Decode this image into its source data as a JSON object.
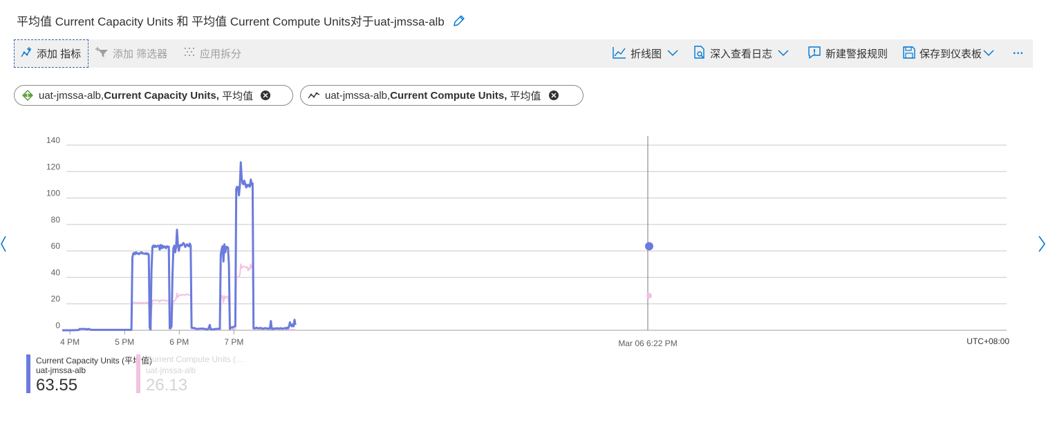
{
  "title": "平均值 Current Capacity Units 和 平均值 Current Compute Units对于uat-jmssa-alb",
  "toolbar": {
    "add_metric": "添加 指标",
    "add_filter": "添加 筛选器",
    "apply_split": "应用拆分",
    "chart_type": "折线图",
    "drill_logs": "深入查看日志",
    "new_alert": "新建警报规则",
    "save_dashboard": "保存到仪表板",
    "more": "···"
  },
  "pills": [
    {
      "resource": "uat-jmssa-alb,",
      "metric": "Current Capacity Units,",
      "agg": "平均值"
    },
    {
      "resource": "uat-jmssa-alb,",
      "metric": "Current Compute Units,",
      "agg": "平均值"
    }
  ],
  "colors": {
    "series1": "#6b7bdb",
    "series2": "#f2c2e2",
    "grid": "#c8c8c8"
  },
  "chart_data": {
    "type": "line",
    "x_start": "3:50 PM",
    "x_end": "7:56 PM",
    "x_tick_labels": [
      "4 PM",
      "5 PM",
      "6 PM",
      "7 PM"
    ],
    "y_ticks": [
      0,
      20,
      40,
      60,
      80,
      100,
      120,
      140
    ],
    "ylim": [
      0,
      140
    ],
    "timezone": "UTC+08:00",
    "cursor_label": "Mar 06 6:22 PM",
    "series": [
      {
        "name": "Current Capacity Units (平均值)",
        "resource": "uat-jmssa-alb",
        "current": "63.55",
        "points": [
          [
            0,
            0
          ],
          [
            10,
            0
          ],
          [
            18,
            0.2
          ],
          [
            19,
            1
          ],
          [
            26,
            1
          ],
          [
            27,
            0.5
          ],
          [
            29,
            1
          ],
          [
            31,
            0.5
          ],
          [
            32,
            0.3
          ],
          [
            76,
            0.3
          ],
          [
            77,
            55
          ],
          [
            78,
            58
          ],
          [
            79,
            58.5
          ],
          [
            80,
            57.5
          ],
          [
            81,
            59
          ],
          [
            82,
            58
          ],
          [
            83,
            58.3
          ],
          [
            84,
            57.5
          ],
          [
            85,
            58
          ],
          [
            86,
            58.5
          ],
          [
            87,
            59
          ],
          [
            88,
            58
          ],
          [
            89,
            58.2
          ],
          [
            90,
            58
          ],
          [
            91,
            57.8
          ],
          [
            92,
            58.3
          ],
          [
            93,
            57.5
          ],
          [
            94,
            58
          ],
          [
            95,
            57
          ],
          [
            96,
            2
          ],
          [
            97,
            0.5
          ],
          [
            98,
            45
          ],
          [
            99,
            63
          ],
          [
            100,
            64
          ],
          [
            101,
            63
          ],
          [
            102,
            64
          ],
          [
            103,
            63
          ],
          [
            104,
            63.5
          ],
          [
            105,
            64
          ],
          [
            106,
            63.8
          ],
          [
            107,
            61
          ],
          [
            108,
            64.5
          ],
          [
            109,
            62
          ],
          [
            110,
            64
          ],
          [
            111,
            62.5
          ],
          [
            112,
            63.5
          ],
          [
            113,
            63
          ],
          [
            114,
            62
          ],
          [
            115,
            63.5
          ],
          [
            116,
            63
          ],
          [
            117,
            63.2
          ],
          [
            118,
            1.5
          ],
          [
            119,
            2
          ],
          [
            120,
            3
          ],
          [
            121,
            40
          ],
          [
            122,
            62
          ],
          [
            123,
            64
          ],
          [
            124,
            59
          ],
          [
            125,
            63
          ],
          [
            126,
            76
          ],
          [
            127,
            65
          ],
          [
            128,
            60
          ],
          [
            129,
            64
          ],
          [
            130,
            64.5
          ],
          [
            131,
            64
          ],
          [
            132,
            65
          ],
          [
            133,
            66
          ],
          [
            134,
            65
          ],
          [
            135,
            63
          ],
          [
            136,
            64
          ],
          [
            137,
            65
          ],
          [
            138,
            64
          ],
          [
            139,
            63.5
          ],
          [
            140,
            65.5
          ],
          [
            141,
            64
          ],
          [
            142,
            2
          ],
          [
            146,
            1.5
          ],
          [
            147,
            1
          ],
          [
            154,
            1.3
          ],
          [
            160,
            0.5
          ],
          [
            162,
            4
          ],
          [
            163,
            0.5
          ],
          [
            169,
            1
          ],
          [
            172,
            1.2
          ],
          [
            173,
            1
          ],
          [
            174,
            57
          ],
          [
            175,
            61
          ],
          [
            176,
            63.55
          ],
          [
            177,
            52
          ],
          [
            178,
            65
          ],
          [
            179,
            59
          ],
          [
            180,
            63
          ],
          [
            181,
            63
          ],
          [
            182,
            62.5
          ],
          [
            183,
            50
          ],
          [
            184,
            1
          ],
          [
            185,
            2
          ],
          [
            186,
            2.3
          ],
          [
            187,
            2
          ],
          [
            188,
            2.5
          ],
          [
            189,
            3
          ],
          [
            190,
            3
          ],
          [
            191,
            107
          ],
          [
            192,
            108.5
          ],
          [
            193,
            108
          ],
          [
            194,
            102
          ],
          [
            195,
            110
          ],
          [
            196,
            127
          ],
          [
            197,
            115
          ],
          [
            198,
            111
          ],
          [
            199,
            110.5
          ],
          [
            200,
            113
          ],
          [
            201,
            110
          ],
          [
            202,
            108
          ],
          [
            203,
            110
          ],
          [
            204,
            109
          ],
          [
            205,
            110
          ],
          [
            206,
            108.5
          ],
          [
            207,
            114
          ],
          [
            208,
            110
          ],
          [
            209,
            111
          ],
          [
            210,
            1.5
          ],
          [
            212,
            1.5
          ],
          [
            213,
            2
          ],
          [
            215,
            1.5
          ],
          [
            216,
            1.5
          ],
          [
            218,
            1.8
          ],
          [
            219,
            1.4
          ],
          [
            221,
            1.2
          ],
          [
            222,
            1.6
          ],
          [
            224,
            1.5
          ],
          [
            226,
            1.3
          ],
          [
            227,
            1.2
          ],
          [
            228,
            1.6
          ],
          [
            229,
            7
          ],
          [
            230,
            1.2
          ],
          [
            231,
            1
          ],
          [
            232,
            1.3
          ],
          [
            236,
            1.5
          ],
          [
            239,
            1.3
          ],
          [
            240,
            1.6
          ],
          [
            242,
            1.2
          ],
          [
            244,
            1.5
          ],
          [
            245,
            1.8
          ],
          [
            246,
            1.2
          ],
          [
            247,
            2
          ],
          [
            248,
            1.5
          ],
          [
            249,
            3
          ],
          [
            250,
            6
          ],
          [
            251,
            4
          ],
          [
            252,
            3
          ],
          [
            253,
            4.5
          ],
          [
            254,
            3
          ],
          [
            255,
            8
          ],
          [
            256,
            4
          ]
        ]
      },
      {
        "name": "Current Compute Units (…",
        "resource": "uat-jmssa-alb",
        "current": "26.13",
        "points": [
          [
            0,
            0
          ],
          [
            76,
            0.2
          ],
          [
            77,
            20
          ],
          [
            78,
            21
          ],
          [
            80,
            21
          ],
          [
            82,
            20.5
          ],
          [
            84,
            21
          ],
          [
            86,
            20.5
          ],
          [
            88,
            21
          ],
          [
            90,
            20.5
          ],
          [
            92,
            21
          ],
          [
            94,
            20.8
          ],
          [
            95,
            20.5
          ],
          [
            96,
            1
          ],
          [
            97,
            0.3
          ],
          [
            98,
            15
          ],
          [
            99,
            22.5
          ],
          [
            101,
            22.8
          ],
          [
            103,
            22.5
          ],
          [
            105,
            22.8
          ],
          [
            107,
            21.5
          ],
          [
            108,
            22.8
          ],
          [
            110,
            22.5
          ],
          [
            112,
            22.8
          ],
          [
            114,
            22
          ],
          [
            116,
            22.5
          ],
          [
            117,
            22.5
          ],
          [
            118,
            0.5
          ],
          [
            120,
            1
          ],
          [
            121,
            15
          ],
          [
            122,
            22
          ],
          [
            124,
            22.5
          ],
          [
            125,
            24
          ],
          [
            126,
            28
          ],
          [
            127,
            25
          ],
          [
            128,
            26
          ],
          [
            129,
            27
          ],
          [
            131,
            26.5
          ],
          [
            133,
            27
          ],
          [
            135,
            26.5
          ],
          [
            137,
            27.5
          ],
          [
            139,
            26.5
          ],
          [
            141,
            27
          ],
          [
            142,
            0.5
          ],
          [
            173,
            0.5
          ],
          [
            174,
            23
          ],
          [
            175,
            26
          ],
          [
            176,
            26.13
          ],
          [
            177,
            21
          ],
          [
            178,
            26
          ],
          [
            179,
            24
          ],
          [
            180,
            25.5
          ],
          [
            182,
            25.5
          ],
          [
            183,
            20
          ],
          [
            184,
            0.5
          ],
          [
            190,
            1
          ],
          [
            191,
            40
          ],
          [
            192,
            40.5
          ],
          [
            193,
            40
          ],
          [
            194,
            40.5
          ],
          [
            195,
            42
          ],
          [
            196,
            50
          ],
          [
            197,
            47
          ],
          [
            198,
            48
          ],
          [
            199,
            48.5
          ],
          [
            201,
            47.5
          ],
          [
            203,
            48
          ],
          [
            204,
            45
          ],
          [
            205,
            47
          ],
          [
            206,
            46
          ],
          [
            207,
            50
          ],
          [
            208,
            47.5
          ],
          [
            209,
            48
          ],
          [
            210,
            1
          ],
          [
            256,
            0.5
          ]
        ]
      }
    ]
  }
}
